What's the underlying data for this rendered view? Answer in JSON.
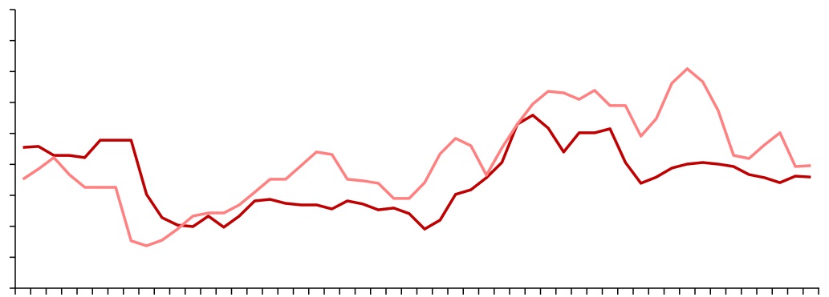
{
  "chart_data": {
    "type": "line",
    "categories": [
      null,
      null,
      null,
      null,
      null,
      null,
      null,
      null,
      null,
      null,
      null,
      null,
      null,
      null,
      null,
      null,
      null,
      null,
      null,
      null,
      null,
      null,
      null,
      null,
      null,
      null,
      null,
      null,
      null,
      null,
      null,
      null,
      null,
      null,
      null,
      null,
      null,
      null,
      null,
      null,
      null,
      null,
      null,
      null,
      null,
      null,
      null,
      null,
      null,
      null,
      null,
      null
    ],
    "series": [
      {
        "color": "#c00000",
        "values": [
          4.55,
          4.58,
          4.29,
          4.29,
          4.22,
          4.78,
          4.78,
          4.78,
          3.03,
          2.28,
          2.04,
          1.99,
          2.33,
          1.97,
          2.33,
          2.82,
          2.87,
          2.74,
          2.69,
          2.69,
          2.56,
          2.82,
          2.72,
          2.53,
          2.59,
          2.41,
          1.91,
          2.2,
          3.03,
          3.18,
          3.57,
          4.06,
          5.3,
          5.59,
          5.17,
          4.4,
          5.02,
          5.02,
          5.15,
          4.06,
          3.39,
          3.59,
          3.88,
          4.01,
          4.06,
          4.01,
          3.93,
          3.67,
          3.57,
          3.41,
          3.62,
          3.59
        ]
      },
      {
        "color": "#ff8080",
        "values": [
          3.52,
          3.85,
          4.22,
          3.67,
          3.26,
          3.26,
          3.26,
          1.53,
          1.37,
          1.55,
          1.91,
          2.33,
          2.43,
          2.43,
          2.69,
          3.1,
          3.52,
          3.52,
          3.96,
          4.4,
          4.32,
          3.52,
          3.47,
          3.39,
          2.9,
          2.9,
          3.41,
          4.34,
          4.84,
          4.6,
          3.65,
          4.53,
          5.3,
          5.95,
          6.36,
          6.31,
          6.1,
          6.39,
          5.9,
          5.9,
          4.91,
          5.48,
          6.62,
          7.09,
          6.67,
          5.74,
          4.29,
          4.19,
          4.63,
          5.02,
          3.93,
          3.96
        ]
      }
    ],
    "ylim": [
      0,
      9
    ],
    "yticks": [
      0,
      1,
      2,
      3,
      4,
      5,
      6,
      7,
      8,
      9
    ]
  }
}
